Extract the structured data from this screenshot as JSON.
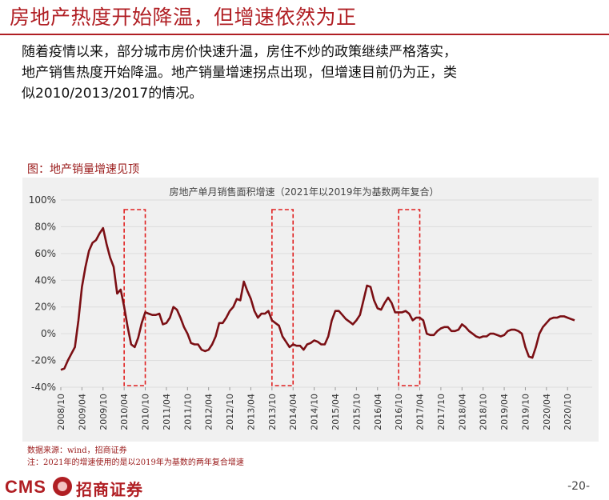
{
  "slide": {
    "title": "房地产热度开始降温，但增速依然为正",
    "body_lines": [
      "随着疫情以来，部分城市房价快速升温，房住不炒的政策继续严格落实，",
      "地产销售热度开始降温。地产销量增速拐点出现，但增速目前仍为正，类",
      "似2010/2013/2017的情况。"
    ],
    "figure_label": "图：地产销量增速见顶",
    "source_line1": "数据来源：wind，招商证券",
    "source_line2": "注：2021年的增速使用的是以2019年为基数的两年复合增速",
    "logo_text": "CMS",
    "logo_cn": "招商证券",
    "page_number": "-20-",
    "accent_color": "#b01e23"
  },
  "chart_data": {
    "type": "line",
    "title": "房地产单月销售面积增速（2021年以2019年为基数两年复合）",
    "xlabel": "",
    "ylabel": "",
    "ylim": [
      -40,
      100
    ],
    "y_ticks": [
      "-40%",
      "-20%",
      "0%",
      "20%",
      "40%",
      "60%",
      "80%",
      "100%"
    ],
    "x_tick_labels": [
      "2008/10",
      "2009/04",
      "2009/10",
      "2010/04",
      "2010/10",
      "2011/04",
      "2011/10",
      "2012/04",
      "2012/10",
      "2013/04",
      "2013/10",
      "2014/04",
      "2014/10",
      "2015/04",
      "2015/10",
      "2016/04",
      "2016/10",
      "2017/04",
      "2017/10",
      "2018/04",
      "2018/10",
      "2019/04",
      "2019/10",
      "2020/04",
      "2020/10"
    ],
    "x_start": "2008/10",
    "x_end": "2021/05",
    "line_color": "#7b0f14",
    "highlight_color": "#e02020",
    "highlight_periods": [
      [
        "2010/04",
        "2010/10"
      ],
      [
        "2013/10",
        "2014/04"
      ],
      [
        "2016/10",
        "2017/04"
      ]
    ],
    "series": [
      {
        "values": [
          -27,
          -26,
          -20,
          -15,
          -10,
          10,
          35,
          50,
          62,
          68,
          70,
          75,
          79,
          67,
          57,
          50,
          30,
          33,
          20,
          5,
          -8,
          -10,
          -3,
          8,
          16,
          15,
          14,
          14,
          15,
          7,
          8,
          12,
          20,
          18,
          12,
          5,
          0,
          -7,
          -8,
          -8,
          -12,
          -13,
          -12,
          -8,
          -2,
          8,
          8,
          12,
          17,
          20,
          26,
          25,
          39,
          32,
          26,
          17,
          12,
          15,
          15,
          17,
          10,
          8,
          6,
          -2,
          -6,
          -10,
          -8,
          -9,
          -9,
          -12,
          -8,
          -7,
          -5,
          -6,
          -8,
          -8,
          -2,
          10,
          17,
          17,
          14,
          11,
          9,
          7,
          10,
          14,
          25,
          36,
          35,
          25,
          19,
          18,
          23,
          27,
          23,
          16,
          16,
          16,
          17,
          15,
          10,
          12,
          12,
          10,
          0,
          -1,
          -1,
          2,
          4,
          5,
          5,
          2,
          2,
          3,
          7,
          5,
          2,
          0,
          -2,
          -3,
          -2,
          -2,
          0,
          0,
          -1,
          -2,
          -1,
          2,
          3,
          3,
          2,
          0,
          -10,
          -17,
          -18,
          -10,
          0,
          5,
          8,
          11,
          12,
          12,
          13,
          13,
          12,
          11,
          10
        ]
      }
    ]
  }
}
